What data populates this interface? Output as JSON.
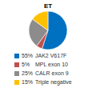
{
  "chart_data": {
    "type": "pie",
    "title": "ET",
    "categories": [
      "JAK2 V617F",
      "MPL exon 10",
      "CALR exon 9",
      "Triple negative"
    ],
    "values": [
      55,
      5,
      25,
      15
    ],
    "value_labels": [
      "55%",
      "5%",
      "25%",
      "15%"
    ],
    "colors": [
      "#0070c0",
      "#c0504d",
      "#8c8c8c",
      "#ffc000"
    ],
    "legend": "bottom"
  }
}
